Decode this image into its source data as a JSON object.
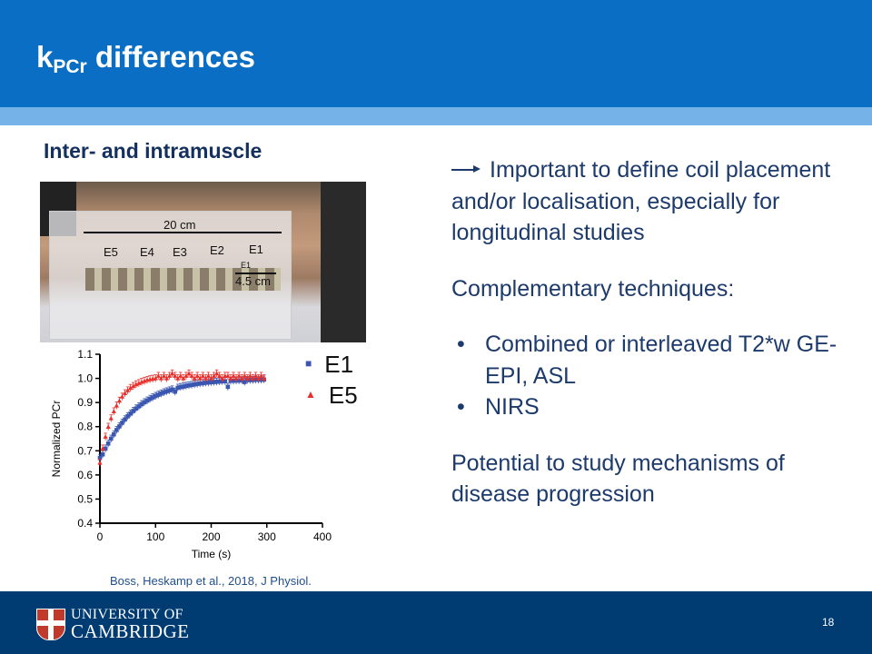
{
  "title": {
    "main": "k",
    "sub": "PCr",
    "rest": " differences"
  },
  "subtitle": "Inter- and intramuscle",
  "right": {
    "p1": "Important to define coil placement and/or localisation, especially for longitudinal studies",
    "p2": "Complementary techniques:",
    "bullets": [
      "Combined or interleaved T2*w GE-EPI, ASL",
      "NIRS"
    ],
    "p3": "Potential to study mechanisms of disease progression"
  },
  "photo": {
    "length": "20 cm",
    "electrodes": [
      "E5",
      "E4",
      "E3",
      "E2",
      "E1"
    ],
    "e1_small": "E1",
    "width": "4.5 cm"
  },
  "citation": "Boss, Heskamp et al., 2018, J Physiol.",
  "footer": {
    "uni_line1": "UNIVERSITY OF",
    "uni_line2": "CAMBRIDGE",
    "page": "18"
  },
  "chart_data": {
    "type": "scatter",
    "xlabel": "Time (s)",
    "ylabel": "Normalized PCr",
    "xlim": [
      0,
      400
    ],
    "ylim": [
      0.4,
      1.1
    ],
    "xticks": [
      "0",
      "100",
      "200",
      "300",
      "400"
    ],
    "yticks": [
      "0.4",
      "0.5",
      "0.6",
      "0.7",
      "0.8",
      "0.9",
      "1.0",
      "1.1"
    ],
    "x_step": 5,
    "error": 0.015,
    "series": [
      {
        "name": "E1",
        "marker": "square",
        "color": "#3a56b0",
        "values": [
          0.67,
          0.685,
          0.709,
          0.73,
          0.75,
          0.768,
          0.786,
          0.801,
          0.816,
          0.83,
          0.843,
          0.854,
          0.865,
          0.875,
          0.884,
          0.893,
          0.901,
          0.908,
          0.915,
          0.921,
          0.927,
          0.932,
          0.937,
          0.942,
          0.946,
          0.95,
          0.954,
          0.945,
          0.961,
          0.964,
          0.966,
          0.969,
          0.971,
          0.973,
          0.975,
          0.977,
          0.979,
          0.98,
          0.982,
          0.983,
          0.984,
          0.985,
          0.986,
          0.987,
          0.988,
          0.988,
          0.965,
          0.99,
          0.99,
          0.991,
          0.991,
          0.992,
          0.985,
          0.993,
          0.993,
          0.993,
          0.994,
          0.994,
          0.994,
          0.995
        ]
      },
      {
        "name": "E5",
        "marker": "triangle",
        "color": "#e8302c",
        "values": [
          0.65,
          0.709,
          0.758,
          0.799,
          0.834,
          0.863,
          0.887,
          0.907,
          0.924,
          0.938,
          0.95,
          0.96,
          0.968,
          0.975,
          0.98,
          0.985,
          0.989,
          0.993,
          0.996,
          0.998,
          1.0,
          1.01,
          1.0,
          1.01,
          1.0,
          1.01,
          1.02,
          1.01,
          1.0,
          1.01,
          1.0,
          1.01,
          1.02,
          1.01,
          1.0,
          1.01,
          1.0,
          1.01,
          1.0,
          1.01,
          1.0,
          1.01,
          1.02,
          1.01,
          1.0,
          1.01,
          1.01,
          1.0,
          1.01,
          1.0,
          1.01,
          1.0,
          1.01,
          1.0,
          1.01,
          1.0,
          1.01,
          1.0,
          1.01,
          1.0
        ]
      }
    ]
  }
}
